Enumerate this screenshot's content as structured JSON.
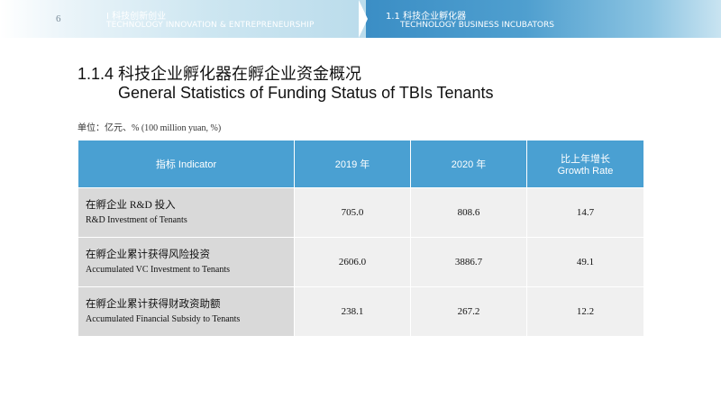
{
  "header": {
    "page_number": "6",
    "section1": {
      "title": "I  科技创新创业",
      "subtitle": "TECHNOLOGY INNOVATION & ENTREPRENEURSHIP"
    },
    "section2": {
      "title": "1.1  科技企业孵化器",
      "subtitle": "TECHNOLOGY BUSINESS INCUBATORS"
    }
  },
  "title": {
    "zh": "1.1.4  科技企业孵化器在孵企业资金概况",
    "en": "General Statistics of Funding Status of TBIs Tenants"
  },
  "unit": "单位：亿元、% (100 million yuan, %)",
  "table": {
    "headers": {
      "indicator": "指标 Indicator",
      "y2019": "2019 年",
      "y2020": "2020 年",
      "growth_zh": "比上年增长",
      "growth_en": "Growth Rate"
    },
    "rows": [
      {
        "zh": "在孵企业 R&D 投入",
        "en": "R&D Investment of Tenants",
        "v2019": "705.0",
        "v2020": "808.6",
        "growth": "14.7"
      },
      {
        "zh": "在孵企业累计获得风险投资",
        "en": "Accumulated VC Investment to Tenants",
        "v2019": "2606.0",
        "v2020": "3886.7",
        "growth": "49.1"
      },
      {
        "zh": "在孵企业累计获得财政资助额",
        "en": "Accumulated Financial Subsidy to Tenants",
        "v2019": "238.1",
        "v2020": "267.2",
        "growth": "12.2"
      }
    ]
  }
}
